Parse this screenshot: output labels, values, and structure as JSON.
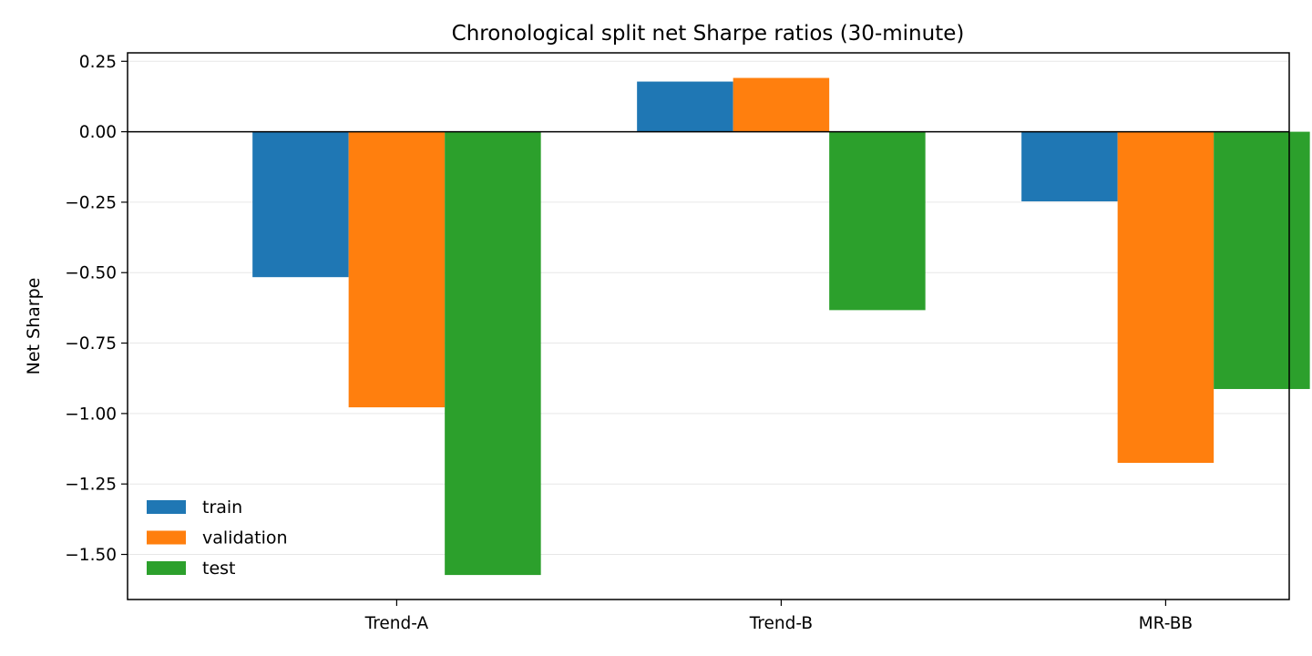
{
  "chart_data": {
    "type": "bar",
    "title": "Chronological split net Sharpe ratios (30-minute)",
    "xlabel": "",
    "ylabel": "Net Sharpe",
    "categories": [
      "Trend-A",
      "Trend-B",
      "MR-BB"
    ],
    "series": [
      {
        "name": "train",
        "color": "#1f77b4",
        "values": [
          -0.516,
          0.178,
          -0.247
        ]
      },
      {
        "name": "validation",
        "color": "#ff7f0e",
        "values": [
          -0.978,
          0.191,
          -1.175
        ]
      },
      {
        "name": "test",
        "color": "#2ca02c",
        "values": [
          -1.573,
          -0.633,
          -0.913
        ]
      }
    ],
    "ylim": [
      -1.66,
      0.28
    ],
    "yticks": [
      0.25,
      0.0,
      -0.25,
      -0.5,
      -0.75,
      -1.0,
      -1.25,
      -1.5
    ],
    "ytick_labels": [
      "0.25",
      "0.00",
      "−0.25",
      "−0.50",
      "−0.75",
      "−1.00",
      "−1.25",
      "−1.50"
    ],
    "grid": "y",
    "zero_line": true,
    "legend_position": "lower-left"
  }
}
